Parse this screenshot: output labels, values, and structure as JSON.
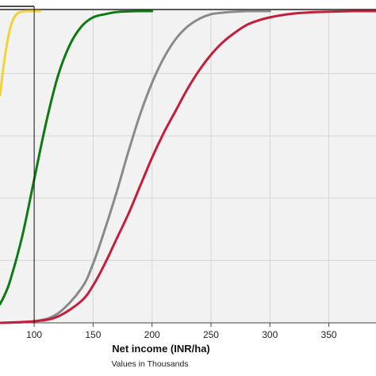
{
  "chart_data": {
    "type": "line",
    "title": "",
    "xlabel": "Net income (INR/ha)",
    "xlabel_note": "Values in Thousands",
    "ylabel": "",
    "xlim": [
      71,
      390
    ],
    "ylim": [
      0,
      1
    ],
    "grid": true,
    "legend": "none",
    "x_ticks": [
      "100",
      "150",
      "200",
      "250",
      "300",
      "350"
    ],
    "x_tick_values": [
      100,
      150,
      200,
      250,
      300,
      350
    ],
    "marker_line_x": 100,
    "series": [
      {
        "color": "#f2d23a",
        "x": [
          71,
          75,
          80,
          85,
          90,
          95,
          100,
          105
        ],
        "y": [
          0.73,
          0.85,
          0.95,
          0.99,
          0.998,
          1.0,
          1.0,
          1.0
        ]
      },
      {
        "color": "#0d7a12",
        "x": [
          71,
          75,
          80,
          90,
          100,
          110,
          120,
          130,
          140,
          150,
          160,
          170,
          180,
          190,
          200
        ],
        "y": [
          0.06,
          0.09,
          0.14,
          0.28,
          0.46,
          0.64,
          0.79,
          0.89,
          0.95,
          0.98,
          0.99,
          0.997,
          0.999,
          1.0,
          1.0
        ]
      },
      {
        "color": "#8a8a8a",
        "x": [
          71,
          100,
          120,
          140,
          150,
          160,
          170,
          180,
          190,
          200,
          210,
          220,
          230,
          240,
          250,
          260,
          270,
          280,
          290,
          300
        ],
        "y": [
          0.0,
          0.005,
          0.03,
          0.11,
          0.19,
          0.3,
          0.42,
          0.55,
          0.67,
          0.77,
          0.85,
          0.91,
          0.95,
          0.975,
          0.99,
          0.995,
          0.998,
          1.0,
          1.0,
          1.0
        ]
      },
      {
        "color": "#c41e3a",
        "x": [
          71,
          100,
          120,
          140,
          150,
          160,
          170,
          180,
          190,
          200,
          210,
          220,
          230,
          240,
          250,
          260,
          270,
          280,
          290,
          300,
          310,
          320,
          330,
          340,
          350,
          360,
          370,
          380,
          390
        ],
        "y": [
          0.0,
          0.005,
          0.02,
          0.07,
          0.12,
          0.19,
          0.27,
          0.35,
          0.44,
          0.53,
          0.61,
          0.68,
          0.75,
          0.81,
          0.86,
          0.9,
          0.93,
          0.955,
          0.97,
          0.98,
          0.987,
          0.992,
          0.995,
          0.997,
          0.998,
          0.999,
          1.0,
          1.0,
          1.0
        ]
      }
    ]
  }
}
